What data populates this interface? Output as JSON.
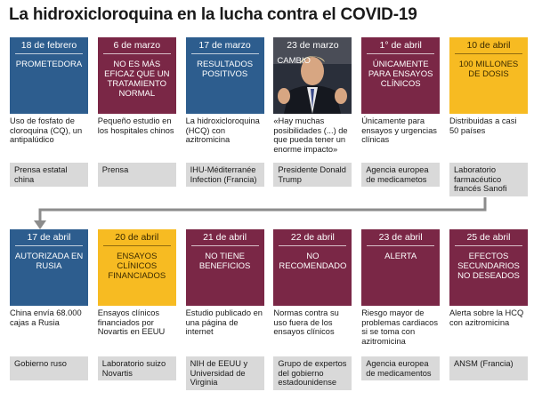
{
  "title": "La hidroxicloroquina en la lucha contra el COVID-19",
  "events": [
    {
      "date": "18 de febrero",
      "status": "PROMETEDORA",
      "theme": "blue",
      "desc": "Uso de fosfato de cloroquina (CQ), un antipalúdico",
      "source": "Prensa estatal china"
    },
    {
      "date": "6 de marzo",
      "status": "NO ES MÁS EFICAZ QUE UN TRATAMIENTO NORMAL",
      "theme": "maroon",
      "desc": "Pequeño estudio en los hospitales chinos",
      "source": "Prensa"
    },
    {
      "date": "17 de marzo",
      "status": "RESULTADOS POSITIVOS",
      "theme": "blue",
      "desc": "La hidroxicloroquina (HCQ) con azitromicina",
      "source": "IHU-Méditerranée Infection (Francia)"
    },
    {
      "date": "23 de marzo",
      "status": "CAMBIO",
      "theme": "photo",
      "desc": "«Hay muchas posibilidades (...) de que pueda tener un enorme impacto»",
      "source": "Presidente Donald Trump"
    },
    {
      "date": "1° de abril",
      "status": "ÚNICAMENTE PARA ENSAYOS CLÍNICOS",
      "theme": "maroon",
      "desc": "Únicamente para ensayos y urgencias clínicas",
      "source": "Agencia europea de medicametos"
    },
    {
      "date": "10 de abril",
      "status": "100 MILLONES DE DOSIS",
      "theme": "yellow",
      "desc": "Distribuidas a casi 50 países",
      "source": "Laboratorio farmacéutico francés Sanofi"
    },
    {
      "date": "17 de abril",
      "status": "AUTORIZADA EN RUSIA",
      "theme": "blue",
      "desc": "China envía 68.000 cajas a Rusia",
      "source": "Gobierno ruso"
    },
    {
      "date": "20 de abril",
      "status": "ENSAYOS CLÍNICOS FINANCIADOS",
      "theme": "yellow",
      "desc": "Ensayos clínicos financiados por Novartis en EEUU",
      "source": "Laboratorio suizo Novartis"
    },
    {
      "date": "21 de abril",
      "status": "NO TIENE BENEFICIOS",
      "theme": "maroon",
      "desc": "Estudio publicado en una página de internet",
      "source": "NIH de EEUU y Universidad de Virginia"
    },
    {
      "date": "22 de abril",
      "status": "NO RECOMENDADO",
      "theme": "maroon",
      "desc": "Normas contra su uso fuera de los ensayos clínicos",
      "source": "Grupo de expertos del gobierno estadounidense"
    },
    {
      "date": "23 de abril",
      "status": "ALERTA",
      "theme": "maroon",
      "desc": "Riesgo mayor de problemas cardiacos si se toma con azitromicina",
      "source": "Agencia europea de medicamentos"
    },
    {
      "date": "25 de abril",
      "status": "EFECTOS SECUNDARIOS NO DESEADOS",
      "theme": "maroon",
      "desc": "Alerta sobre la HCQ con azitromicina",
      "source": "ANSM (Francia)"
    }
  ],
  "colors": {
    "blue": "#2d5d8e",
    "maroon": "#7a2746",
    "yellow": "#f7bb22",
    "source_bg": "#d9d9d9",
    "connector": "#8c8c8c"
  }
}
